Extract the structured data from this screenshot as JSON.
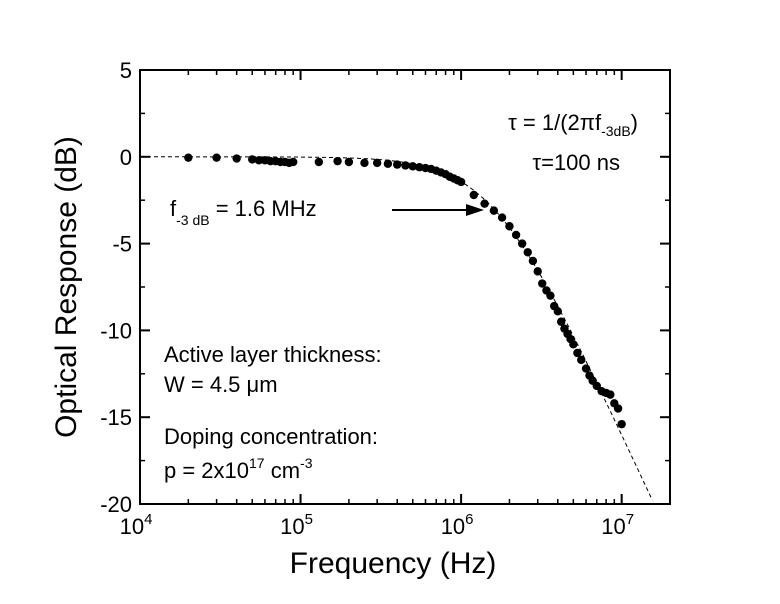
{
  "chart_data": {
    "type": "scatter",
    "xlabel": "Frequency (Hz)",
    "ylabel": "Optical Response (dB)",
    "xscale": "log",
    "xlim": [
      10000,
      20000000
    ],
    "ylim": [
      -20,
      5
    ],
    "x_ticks": [
      {
        "value": 10000,
        "base": "10",
        "exp": "4"
      },
      {
        "value": 100000,
        "base": "10",
        "exp": "5"
      },
      {
        "value": 1000000,
        "base": "10",
        "exp": "6"
      },
      {
        "value": 10000000,
        "base": "10",
        "exp": "7"
      }
    ],
    "y_ticks": [
      {
        "value": 5,
        "label": "5"
      },
      {
        "value": 0,
        "label": "0"
      },
      {
        "value": -5,
        "label": "-5"
      },
      {
        "value": -10,
        "label": "-10"
      },
      {
        "value": -15,
        "label": "-15"
      },
      {
        "value": -20,
        "label": "-20"
      }
    ],
    "grid": false,
    "series": [
      {
        "kind": "points",
        "x": [
          20000,
          30000,
          40000,
          50000,
          55000,
          60000,
          65000,
          70000,
          75000,
          80000,
          85000,
          90000,
          130000,
          170000,
          200000,
          250000,
          300000,
          350000,
          400000,
          450000,
          500000,
          550000,
          600000,
          650000,
          700000,
          750000,
          800000,
          850000,
          900000,
          950000,
          1000000,
          1200000,
          1400000,
          1600000,
          1800000,
          2000000,
          2200000,
          2400000,
          2600000,
          2800000,
          3000000,
          3200000,
          3400000,
          3600000,
          3800000,
          4000000,
          4200000,
          4400000,
          4600000,
          4800000,
          5000000,
          5300000,
          5600000,
          6000000,
          6300000,
          6600000,
          7000000,
          7500000,
          8000000,
          8500000,
          9000000,
          9500000,
          10000000
        ],
        "y": [
          -0.05,
          -0.05,
          -0.1,
          -0.15,
          -0.2,
          -0.2,
          -0.25,
          -0.25,
          -0.3,
          -0.3,
          -0.35,
          -0.3,
          -0.3,
          -0.25,
          -0.3,
          -0.35,
          -0.35,
          -0.4,
          -0.45,
          -0.5,
          -0.55,
          -0.6,
          -0.65,
          -0.7,
          -0.8,
          -0.9,
          -1.0,
          -1.15,
          -1.25,
          -1.35,
          -1.45,
          -2.2,
          -2.7,
          -3.1,
          -3.5,
          -4.0,
          -4.5,
          -5.0,
          -5.5,
          -6.0,
          -6.6,
          -7.3,
          -7.7,
          -8.0,
          -8.6,
          -8.9,
          -9.5,
          -9.9,
          -10.2,
          -10.5,
          -10.8,
          -11.3,
          -11.7,
          -12.2,
          -12.6,
          -12.9,
          -13.2,
          -13.5,
          -13.6,
          -13.7,
          -14.2,
          -14.5,
          -15.4
        ]
      },
      {
        "kind": "fit",
        "f3db_hz": 1600000
      }
    ],
    "annotations": {
      "tau_line_main": "τ = 1/(2πf",
      "tau_line_sub": "-3dB",
      "tau_line_end": ")",
      "tau_value": "τ=100 ns",
      "f3db_main": "f",
      "f3db_sub": "-3 dB",
      "f3db_value": " = 1.6 MHz",
      "layer_label": "Active layer thickness:",
      "layer_value": "W = 4.5 μm",
      "doping_label": "Doping concentration:",
      "doping_value_main": "p = 2x10",
      "doping_value_sup1": "17",
      "doping_value_unit": " cm",
      "doping_value_sup2": "-3"
    }
  }
}
